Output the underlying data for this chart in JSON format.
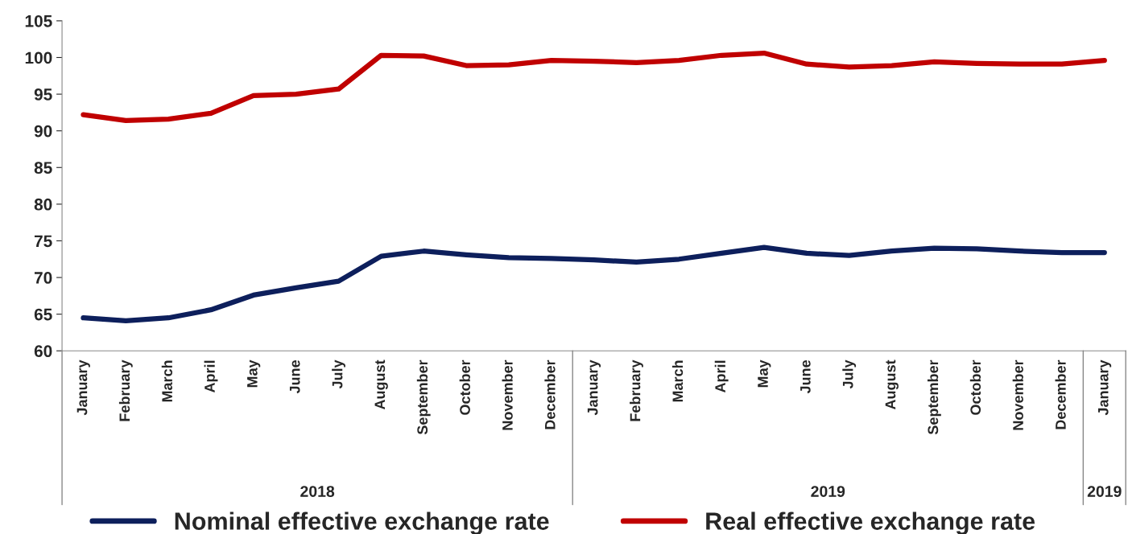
{
  "chart_data": {
    "type": "line",
    "categories": [
      "January",
      "February",
      "March",
      "April",
      "May",
      "June",
      "July",
      "August",
      "September",
      "October",
      "November",
      "December",
      "January",
      "February",
      "March",
      "April",
      "May",
      "June",
      "July",
      "August",
      "September",
      "October",
      "November",
      "December",
      "January"
    ],
    "series": [
      {
        "name": "Nominal effective exchange rate",
        "color": "#0d1f5c",
        "values": [
          64.5,
          64.1,
          64.5,
          65.6,
          67.6,
          68.6,
          69.5,
          72.9,
          73.6,
          73.1,
          72.7,
          72.6,
          72.4,
          72.1,
          72.5,
          73.3,
          74.1,
          73.3,
          73.0,
          73.6,
          74.0,
          73.9,
          73.6,
          73.4,
          73.4
        ]
      },
      {
        "name": "Real effective exchange rate",
        "color": "#c00000",
        "values": [
          92.2,
          91.4,
          91.6,
          92.4,
          94.8,
          95.0,
          95.7,
          100.3,
          100.2,
          98.9,
          99.0,
          99.6,
          99.5,
          99.3,
          99.6,
          100.3,
          100.6,
          99.1,
          98.7,
          98.9,
          99.4,
          99.2,
          99.1,
          99.1,
          99.6
        ]
      }
    ],
    "annotations": [
      "2018",
      "2019",
      "2019"
    ],
    "ylim": [
      60,
      105
    ],
    "yticks": [
      60,
      65,
      70,
      75,
      80,
      85,
      90,
      95,
      100,
      105
    ],
    "grid": false,
    "legend": "bottom",
    "marker": "none",
    "line_style": "solid"
  }
}
